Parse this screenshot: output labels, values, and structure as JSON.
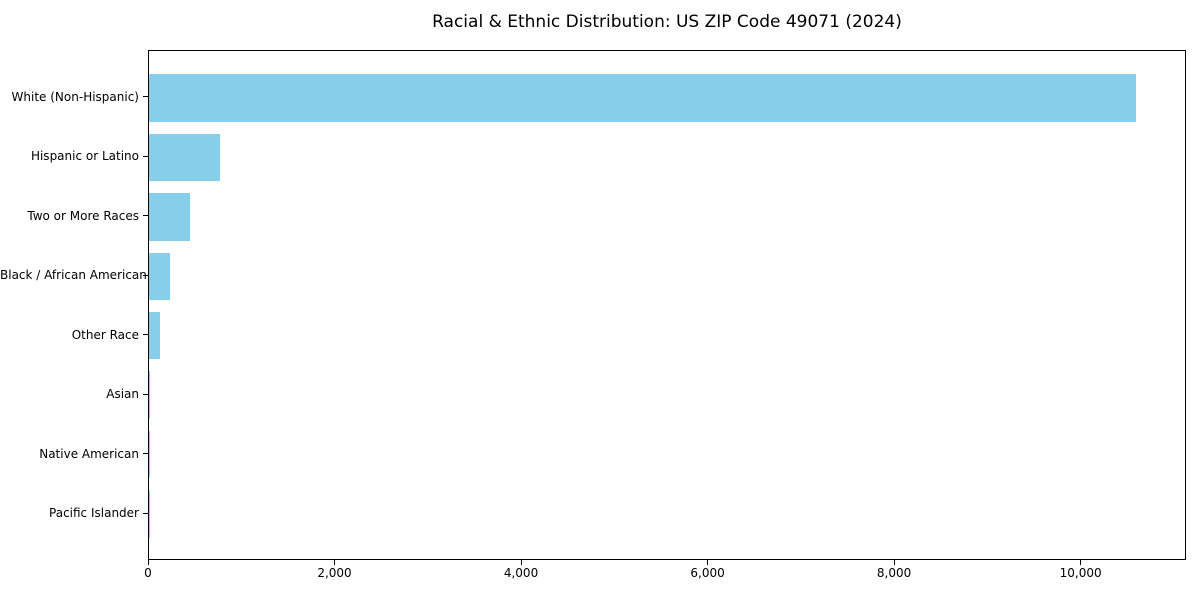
{
  "chart_data": {
    "type": "bar",
    "orientation": "horizontal",
    "title": "Racial & Ethnic Distribution: US ZIP Code 49071 (2024)",
    "categories": [
      "White (Non-Hispanic)",
      "Hispanic or Latino",
      "Two or More Races",
      "Black / African American",
      "Other Race",
      "Asian",
      "Native American",
      "Pacific Islander"
    ],
    "values": [
      10600,
      760,
      445,
      230,
      115,
      15,
      5,
      2
    ],
    "xlabel": "",
    "ylabel": "",
    "xlim": [
      0,
      11130
    ],
    "xticks": [
      0,
      2000,
      4000,
      6000,
      8000,
      10000
    ],
    "xtick_labels": [
      "0",
      "2,000",
      "4,000",
      "6,000",
      "8,000",
      "10,000"
    ],
    "bar_color": "#87CEEB",
    "axis_color": "#000000",
    "text_color": "#000000",
    "background": "#FFFFFF",
    "grid": false,
    "legend": null
  }
}
